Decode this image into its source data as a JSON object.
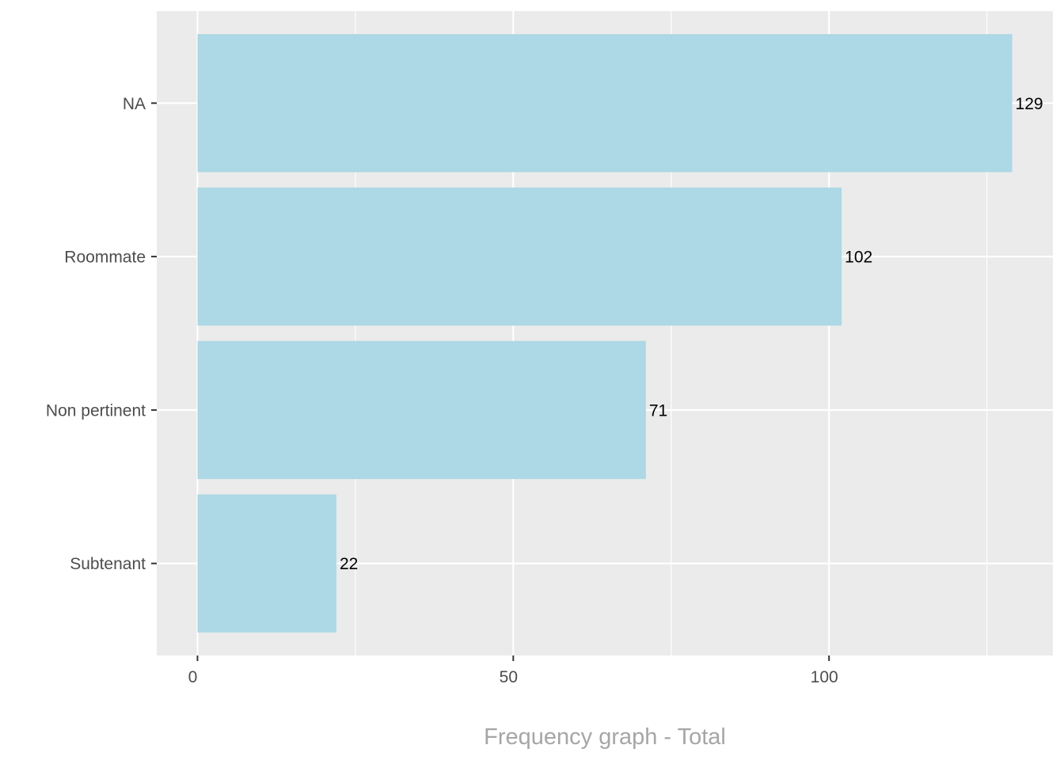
{
  "chart_data": {
    "type": "bar",
    "orientation": "horizontal",
    "categories": [
      "NA",
      "Roommate",
      "Non pertinent",
      "Subtenant"
    ],
    "values": [
      129,
      102,
      71,
      22
    ],
    "data_labels": [
      "129",
      "102",
      "71",
      "22"
    ],
    "title": "",
    "xlabel": "Frequency graph - Total",
    "ylabel": "",
    "xlim": [
      -6.45,
      135.45
    ],
    "x_ticks": [
      0,
      50,
      100
    ],
    "x_tick_labels": [
      "0",
      "50",
      "100"
    ],
    "x_minor_ticks": [
      25,
      75,
      125
    ],
    "grid": true,
    "legend": "none",
    "colors": {
      "bar": "#add8e6",
      "panel": "#ebebeb",
      "grid": "#ffffff",
      "tick_text": "#4d4d4d",
      "axis_title": "#a6a6a6",
      "label_text": "#000000"
    }
  }
}
